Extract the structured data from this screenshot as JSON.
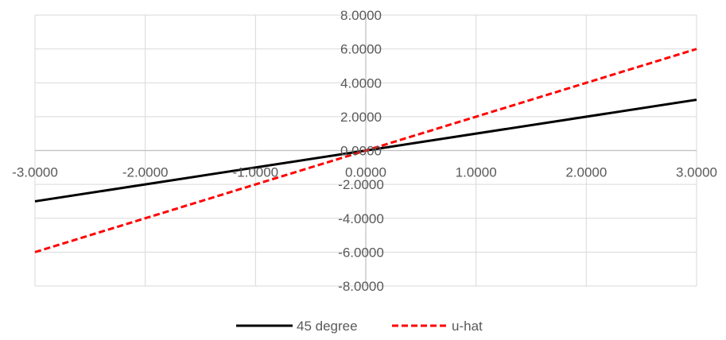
{
  "chart_data": {
    "type": "line",
    "xlim": [
      -3,
      3
    ],
    "ylim": [
      -8,
      8
    ],
    "x_ticks": [
      -3,
      -2,
      -1,
      0,
      1,
      2,
      3
    ],
    "y_ticks": [
      -8,
      -6,
      -4,
      -2,
      0,
      2,
      4,
      6,
      8
    ],
    "x_tick_labels": [
      "-3.0000",
      "-2.0000",
      "-1.0000",
      "0.0000",
      "1.0000",
      "2.0000",
      "3.0000"
    ],
    "y_tick_labels": [
      "-8.0000",
      "-6.0000",
      "-4.0000",
      "-2.0000",
      "0.0000",
      "2.0000",
      "4.0000",
      "6.0000",
      "8.0000"
    ],
    "grid": true,
    "legend_position": "bottom",
    "series": [
      {
        "name": "45 degree",
        "color": "#000000",
        "style": "solid",
        "x": [
          -3,
          3
        ],
        "y": [
          -3,
          3
        ]
      },
      {
        "name": "u-hat",
        "color": "#ff0000",
        "style": "dashed",
        "x": [
          -3,
          3
        ],
        "y": [
          -6,
          6
        ]
      }
    ]
  }
}
